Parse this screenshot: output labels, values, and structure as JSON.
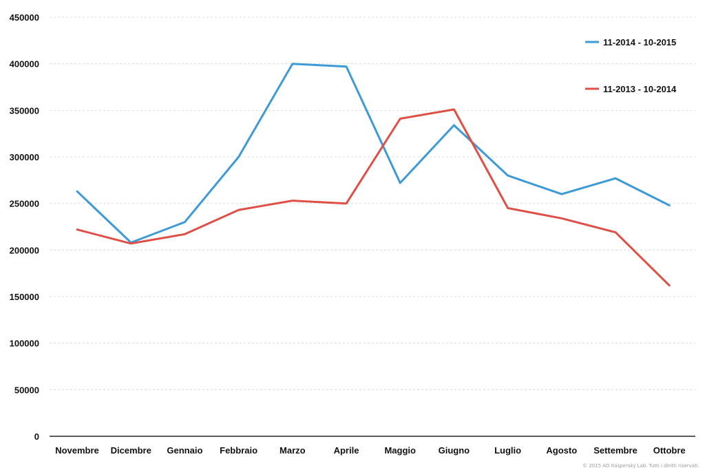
{
  "chart_data": {
    "type": "line",
    "categories": [
      "Novembre",
      "Dicembre",
      "Gennaio",
      "Febbraio",
      "Marzo",
      "Aprile",
      "Maggio",
      "Giugno",
      "Luglio",
      "Agosto",
      "Settembre",
      "Ottobre"
    ],
    "y_ticks": [
      "0",
      "50000",
      "100000",
      "150000",
      "200000",
      "250000",
      "300000",
      "350000",
      "400000",
      "450000"
    ],
    "ylim": [
      0,
      450000
    ],
    "grid": true,
    "legend_position": "top-right",
    "series": [
      {
        "name": "11-2014  - 10-2015",
        "color": "#3d9ad6",
        "values": [
          263000,
          208000,
          230000,
          300000,
          400000,
          397000,
          272000,
          334000,
          280000,
          260000,
          277000,
          248000
        ]
      },
      {
        "name": "11-2013  - 10-2014",
        "color": "#df4f46",
        "values": [
          222000,
          207000,
          217000,
          243000,
          253000,
          250000,
          341000,
          351000,
          245000,
          234000,
          219000,
          162000
        ]
      }
    ]
  },
  "copyright": "© 2015 AO Kaspersky Lab. Tutti i diritti riservati."
}
